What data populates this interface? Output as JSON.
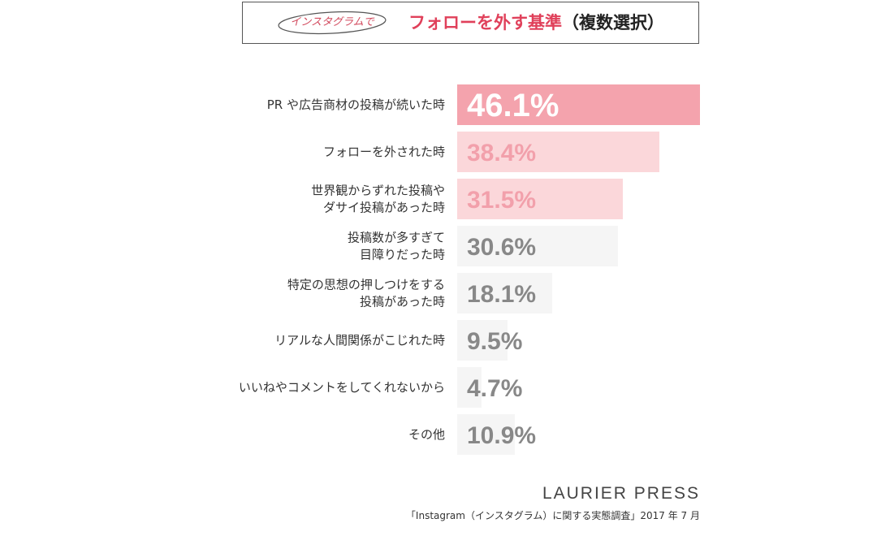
{
  "title": {
    "tag": "インスタグラムで",
    "main": "フォローを外す基準",
    "suffix": "（複数選択）"
  },
  "chart_data": {
    "type": "bar",
    "orientation": "horizontal",
    "unit": "%",
    "categories": [
      [
        "PR や広告商材の投稿が続いた時"
      ],
      [
        "フォローを外された時"
      ],
      [
        "世界観からずれた投稿や",
        "ダサイ投稿があった時"
      ],
      [
        "投稿数が多すぎて",
        "目障りだった時"
      ],
      [
        "特定の思想の押しつけをする",
        "投稿があった時"
      ],
      [
        "リアルな人間関係がこじれた時"
      ],
      [
        "いいねやコメントをしてくれないから"
      ],
      [
        "その他"
      ]
    ],
    "values": [
      46.1,
      38.4,
      31.5,
      30.6,
      18.1,
      9.5,
      4.7,
      10.9
    ],
    "value_labels": [
      "46.1%",
      "38.4%",
      "31.5%",
      "30.6%",
      "18.1%",
      "9.5%",
      "4.7%",
      "10.9%"
    ],
    "bar_colors": [
      "#f4a3ad",
      "#fbd7da",
      "#fbd7da",
      "#f5f5f5",
      "#f5f5f5",
      "#f5f5f5",
      "#f5f5f5",
      "#f5f5f5"
    ],
    "value_colors": [
      "#ffffff",
      "#f2a0ab",
      "#f2a0ab",
      "#888888",
      "#888888",
      "#888888",
      "#888888",
      "#888888"
    ],
    "grid": false
  },
  "footer": {
    "brand": "LAURIER PRESS",
    "source": "「Instagram（インスタグラム）に関する実態調査」2017 年 7 月"
  }
}
